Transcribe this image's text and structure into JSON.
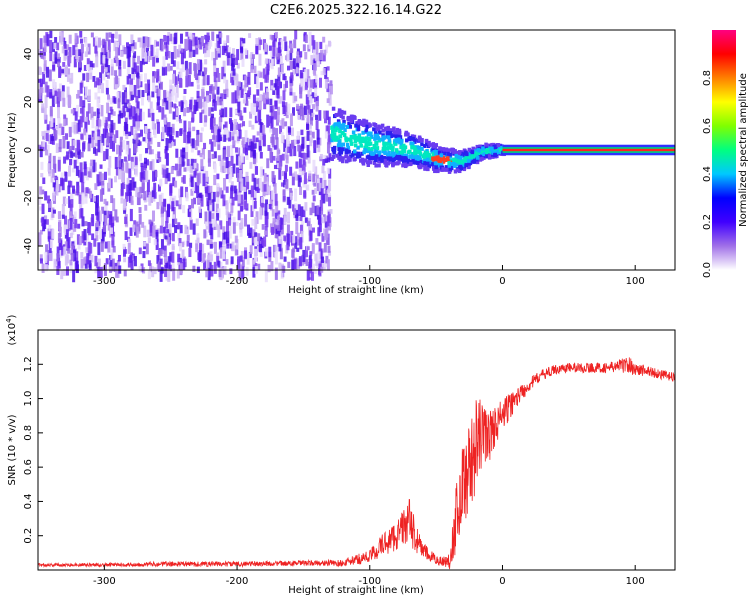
{
  "title": "C2E6.2025.322.16.14.G22",
  "chart_data": [
    {
      "type": "heatmap",
      "xlabel": "Height of straight line (km)",
      "ylabel": "Frequency (Hz)",
      "xlim": [
        -350,
        130
      ],
      "ylim": [
        -50,
        50
      ],
      "xticks": [
        -300,
        -200,
        -100,
        0,
        100
      ],
      "yticks": [
        -40,
        -20,
        0,
        20,
        40
      ],
      "colorbar": {
        "label": "Normalized spectral amplitude",
        "ticks": [
          "0.0",
          "0.2",
          "0.4",
          "0.6",
          "0.8"
        ],
        "range": [
          0,
          1
        ],
        "colors": [
          "#ffffff",
          "#a070e8",
          "#4000ff",
          "#0000ff",
          "#00c8ff",
          "#00ff80",
          "#80ff00",
          "#ffff00",
          "#ff8000",
          "#ff0000",
          "#ff0080"
        ]
      },
      "features": {
        "noise_region_x": [
          -350,
          -130
        ],
        "transition_center_x": [
          -130,
          0
        ],
        "transition_center_freq": [
          8,
          5,
          3,
          2,
          0,
          -3,
          -4,
          0,
          1
        ],
        "steady_line_freq": 0,
        "steady_line_x": [
          0,
          130
        ]
      }
    },
    {
      "type": "line",
      "xlabel": "Height of straight line (km)",
      "ylabel": "SNR (10 * v/v)",
      "scale_label": "(x10",
      "scale_exp": "4",
      "xlim": [
        -350,
        130
      ],
      "ylim": [
        0,
        1.4
      ],
      "xticks": [
        -300,
        -200,
        -100,
        0,
        100
      ],
      "yticks": [
        "0.2",
        "0.4",
        "0.6",
        "0.8",
        "1.0",
        "1.2"
      ],
      "series": [
        {
          "color": "#ee2222",
          "x": [
            -350,
            -300,
            -250,
            -200,
            -150,
            -120,
            -100,
            -90,
            -80,
            -75,
            -70,
            -65,
            -60,
            -55,
            -50,
            -45,
            -40,
            -35,
            -30,
            -25,
            -20,
            -15,
            -10,
            -5,
            0,
            5,
            10,
            20,
            30,
            40,
            50,
            60,
            80,
            95,
            100,
            110,
            120,
            130
          ],
          "y": [
            0.03,
            0.03,
            0.035,
            0.035,
            0.04,
            0.04,
            0.08,
            0.15,
            0.2,
            0.25,
            0.28,
            0.18,
            0.12,
            0.08,
            0.06,
            0.05,
            0.05,
            0.3,
            0.5,
            0.6,
            0.72,
            0.8,
            0.78,
            0.85,
            0.9,
            0.95,
            1.0,
            1.08,
            1.14,
            1.17,
            1.18,
            1.18,
            1.18,
            1.2,
            1.17,
            1.16,
            1.14,
            1.12
          ],
          "spread": [
            0.01,
            0.01,
            0.015,
            0.015,
            0.015,
            0.02,
            0.04,
            0.07,
            0.09,
            0.1,
            0.14,
            0.08,
            0.05,
            0.04,
            0.03,
            0.03,
            0.05,
            0.2,
            0.25,
            0.25,
            0.28,
            0.2,
            0.15,
            0.12,
            0.1,
            0.08,
            0.06,
            0.04,
            0.03,
            0.03,
            0.03,
            0.03,
            0.03,
            0.05,
            0.04,
            0.03,
            0.03,
            0.03
          ]
        }
      ]
    }
  ]
}
